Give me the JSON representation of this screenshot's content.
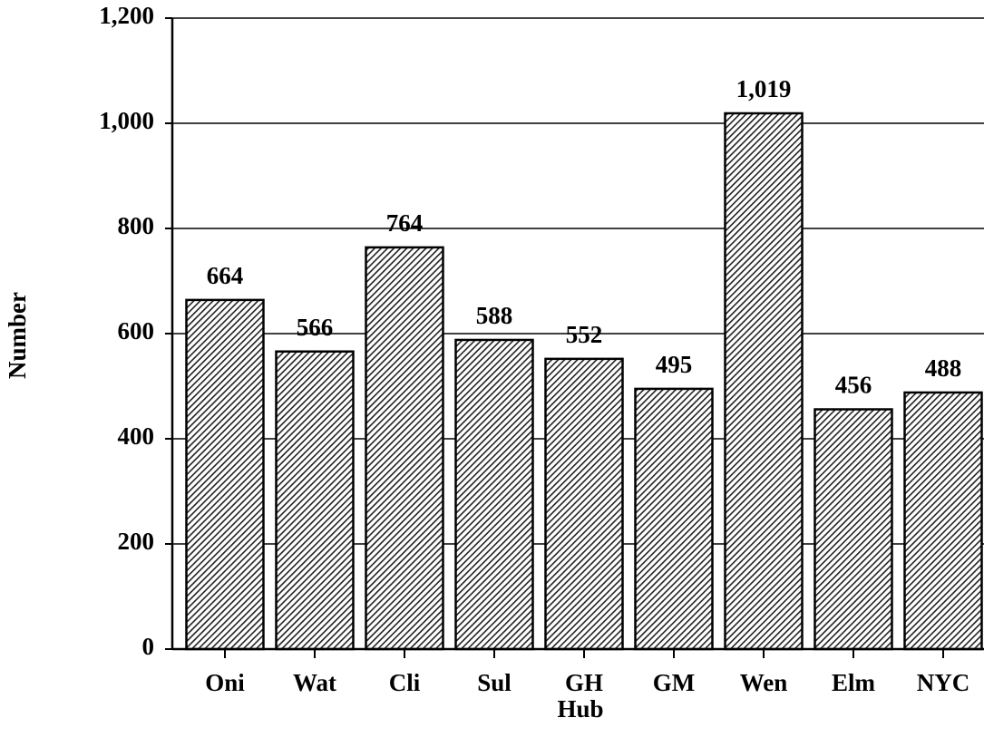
{
  "chart_data": {
    "type": "bar",
    "xlabel": "Hub",
    "ylabel": "Number",
    "categories": [
      "Oni",
      "Wat",
      "Cli",
      "Sul",
      "GH",
      "GM",
      "Wen",
      "Elm",
      "NYC"
    ],
    "values": [
      664,
      566,
      764,
      588,
      552,
      495,
      1019,
      456,
      488
    ],
    "value_labels": [
      "664",
      "566",
      "764",
      "588",
      "552",
      "495",
      "1,019",
      "456",
      "488"
    ],
    "color": "#333333",
    "ylim": [
      0,
      1200
    ],
    "yticks": [
      0,
      200,
      400,
      600,
      800,
      {
        "value": 1000,
        "label": "1,000"
      },
      {
        "value": 1200,
        "label": "1,200"
      }
    ],
    "grid": true
  }
}
